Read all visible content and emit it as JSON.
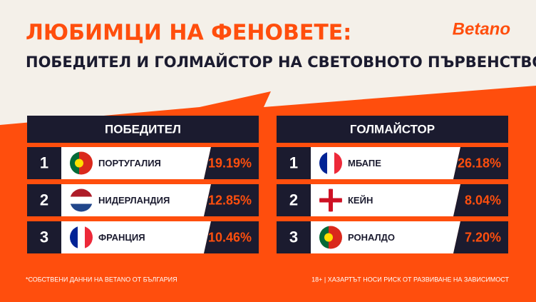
{
  "header": {
    "title": "ЛЮБИМЦИ НА ФЕНОВЕТЕ:",
    "subtitle": "ПОБЕДИТЕЛ И ГОЛМАЙСТОР НА СВЕТОВНОТО ПЪРВЕНСТВО",
    "logo": "Betano"
  },
  "tables": [
    {
      "title": "ПОБЕДИТЕЛ",
      "rows": [
        [
          "1",
          "ПОРТУГАЛИЯ",
          "19.19%"
        ],
        [
          "2",
          "НИДЕРЛАНДИЯ",
          "12.85%"
        ],
        [
          "3",
          "ФРАНЦИЯ",
          "10.46%"
        ]
      ]
    },
    {
      "title": "ГОЛМАЙСТОР",
      "rows": [
        [
          "1",
          "МБАПЕ",
          "26.18%"
        ],
        [
          "2",
          "КЕЙН",
          "8.04%"
        ],
        [
          "3",
          "РОНАЛДО",
          "7.20%"
        ]
      ]
    }
  ],
  "footer": {
    "note": "*СОБСТВЕНИ ДАННИ НА BETANO ОТ БЪЛГАРИЯ",
    "disclaimer": "18+ | ХАЗАРТЪТ НОСИ РИСК ОТ РАЗВИВАНЕ НА ЗАВИСИМОСТ"
  }
}
